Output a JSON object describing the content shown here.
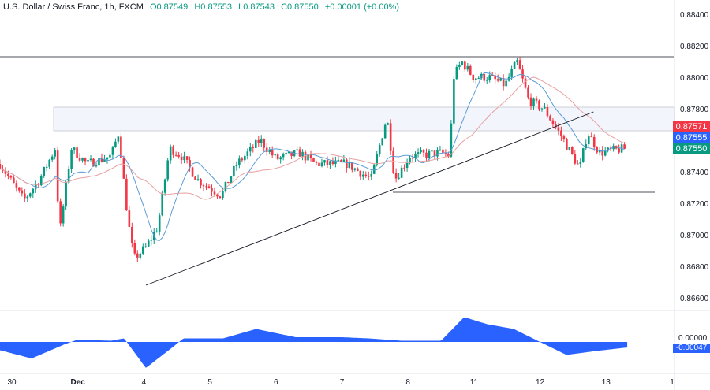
{
  "header": {
    "symbol": "U.S. Dollar / Swiss Franc, 1h, FXCM",
    "open": "O0.87549",
    "high": "H0.87553",
    "low": "L0.87543",
    "close": "C0.87550",
    "change": "+0.00001 (+0.00%)"
  },
  "price_labels": [
    {
      "value": "0.87571",
      "color": "#f23645"
    },
    {
      "value": "0.87555",
      "color": "#2962ff"
    },
    {
      "value": "0.87550",
      "color": "#089981"
    }
  ],
  "osc_labels": {
    "zero": "0.00000",
    "last": "-0.00047"
  },
  "colors": {
    "up": "#089981",
    "down": "#f23645",
    "osc": "#2962ff",
    "ma_fast": "#5b9bd5",
    "ma_slow": "#e8a0a0"
  },
  "chart_data": {
    "type": "candlestick",
    "y_ticks": [
      "0.88400",
      "0.88200",
      "0.88000",
      "0.87800",
      "0.87600",
      "0.87400",
      "0.87200",
      "0.87000",
      "0.86800",
      "0.86600"
    ],
    "ylim": [
      0.8652,
      0.885
    ],
    "x_ticks": [
      "30",
      "Dec",
      "4",
      "5",
      "6",
      "7",
      "8",
      "11",
      "12",
      "13",
      "1"
    ],
    "close_path": [
      [
        -0.18,
        0.8745
      ],
      [
        0.18,
        0.8722
      ],
      [
        0.42,
        0.8735
      ],
      [
        0.66,
        0.8755
      ],
      [
        0.72,
        0.87
      ],
      [
        0.9,
        0.8755
      ],
      [
        1.14,
        0.8745
      ],
      [
        1.5,
        0.875
      ],
      [
        1.62,
        0.8765
      ],
      [
        1.73,
        0.872
      ],
      [
        1.79,
        0.87
      ],
      [
        1.85,
        0.8685
      ],
      [
        2.03,
        0.8692
      ],
      [
        2.21,
        0.8705
      ],
      [
        2.39,
        0.8755
      ],
      [
        2.57,
        0.875
      ],
      [
        2.81,
        0.8735
      ],
      [
        3.17,
        0.8725
      ],
      [
        3.41,
        0.8745
      ],
      [
        3.76,
        0.876
      ],
      [
        4.0,
        0.8748
      ],
      [
        4.36,
        0.8752
      ],
      [
        4.6,
        0.8745
      ],
      [
        5.08,
        0.8745
      ],
      [
        5.44,
        0.8735
      ],
      [
        5.68,
        0.8775
      ],
      [
        5.8,
        0.8735
      ],
      [
        6.03,
        0.875
      ],
      [
        6.51,
        0.8752
      ],
      [
        6.63,
        0.875
      ],
      [
        6.69,
        0.88
      ],
      [
        6.81,
        0.881
      ],
      [
        6.99,
        0.88
      ],
      [
        7.23,
        0.88
      ],
      [
        7.47,
        0.8795
      ],
      [
        7.65,
        0.881
      ],
      [
        7.83,
        0.8785
      ],
      [
        8.06,
        0.878
      ],
      [
        8.36,
        0.876
      ],
      [
        8.6,
        0.8742
      ],
      [
        8.72,
        0.8765
      ],
      [
        8.9,
        0.8752
      ],
      [
        9.32,
        0.8755
      ]
    ],
    "levels": {
      "resistance": 0.8813,
      "zone": [
        0.8766,
        0.8781
      ],
      "support": 0.8727
    },
    "trendline": [
      [
        2.03,
        0.8668
      ],
      [
        8.81,
        0.8778
      ]
    ],
    "oscillator": {
      "values": [
        [
          -0.18,
          -0.0007
        ],
        [
          0.3,
          -0.0014
        ],
        [
          0.8,
          -0.0002
        ],
        [
          1.0,
          0.0002
        ],
        [
          1.5,
          0.0001
        ],
        [
          1.7,
          0.0003
        ],
        [
          2.03,
          -0.0022
        ],
        [
          2.4,
          -0.0006
        ],
        [
          2.6,
          0.0003
        ],
        [
          3.2,
          0.0003
        ],
        [
          3.7,
          0.0011
        ],
        [
          4.3,
          0.0004
        ],
        [
          5.0,
          0.0004
        ],
        [
          5.4,
          0.0003
        ],
        [
          5.9,
          0.0001
        ],
        [
          6.5,
          0.0001
        ],
        [
          6.85,
          0.0021
        ],
        [
          7.2,
          0.0015
        ],
        [
          7.6,
          0.0011
        ],
        [
          8.0,
          0.0
        ],
        [
          8.4,
          -0.0011
        ],
        [
          8.8,
          -0.0008
        ],
        [
          9.32,
          -0.00047
        ]
      ]
    }
  }
}
